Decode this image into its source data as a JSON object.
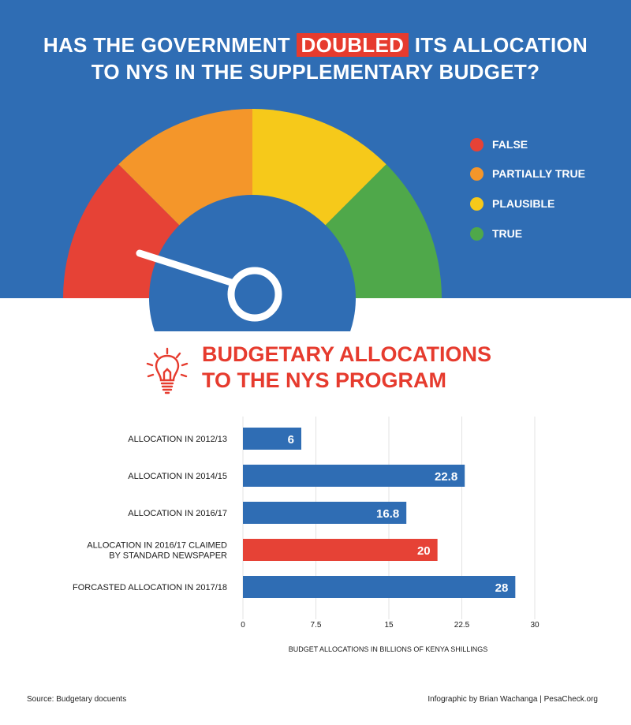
{
  "headline": {
    "line1_before": "HAS THE GOVERNMENT",
    "line1_highlight": "DOUBLED",
    "line1_after": "ITS ALLOCATION",
    "line2": "TO NYS IN THE SUPPLEMENTARY BUDGET?"
  },
  "gauge": {
    "legend": [
      {
        "label": "FALSE",
        "color": "#e64236"
      },
      {
        "label": "PARTIALLY TRUE",
        "color": "#f4962a"
      },
      {
        "label": "PLAUSIBLE",
        "color": "#f6c91a"
      },
      {
        "label": "TRUE",
        "color": "#4fa84a"
      }
    ],
    "verdict": "FALSE"
  },
  "section": {
    "icon": "lightbulb-icon",
    "title_line1": "BUDGETARY ALLOCATIONS",
    "title_line2": "TO THE NYS PROGRAM"
  },
  "chart_data": {
    "type": "bar",
    "orientation": "horizontal",
    "categories": [
      [
        "ALLOCATION IN 2012/13"
      ],
      [
        "ALLOCATION IN 2014/15"
      ],
      [
        "ALLOCATION IN 2016/17"
      ],
      [
        "ALLOCATION IN 2016/17 CLAIMED",
        "BY STANDARD NEWSPAPER"
      ],
      [
        "FORCASTED ALLOCATION IN 2017/18"
      ]
    ],
    "values": [
      6,
      22.8,
      16.8,
      20,
      28
    ],
    "value_labels": [
      "6",
      "22.8",
      "16.8",
      "20",
      "28"
    ],
    "colors": [
      "#2f6db4",
      "#2f6db4",
      "#2f6db4",
      "#e64236",
      "#2f6db4"
    ],
    "xlim": [
      0,
      30
    ],
    "xticks": [
      0,
      7.5,
      15,
      22.5,
      30
    ],
    "xtick_labels": [
      "0",
      "7.5",
      "15",
      "22.5",
      "30"
    ],
    "xlabel": "BUDGET ALLOCATIONS IN BILLIONS OF KENYA SHILLINGS",
    "grid": true
  },
  "footer": {
    "source": "Source: Budgetary docuents",
    "credit": "Infographic by Brian Wachanga | PesaCheck.org"
  }
}
